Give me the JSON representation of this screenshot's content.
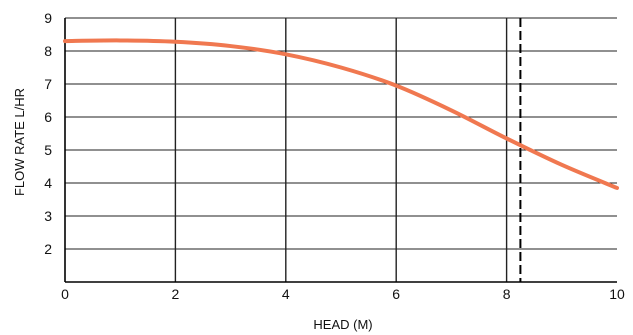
{
  "chart_data": {
    "type": "line",
    "title": "",
    "xlabel": "HEAD (M)",
    "ylabel": "FLOW RATE L/HR",
    "xlim": [
      0,
      10
    ],
    "ylim": [
      1,
      9
    ],
    "x_ticks": [
      "0",
      "2",
      "4",
      "6",
      "8",
      "10"
    ],
    "y_ticks": [
      "2",
      "3",
      "4",
      "5",
      "6",
      "7",
      "8",
      "9"
    ],
    "grid": true,
    "legend": "none",
    "series": [
      {
        "color": "#f07850",
        "points": [
          {
            "x": 0,
            "y": 8.3
          },
          {
            "x": 1,
            "y": 8.32
          },
          {
            "x": 2,
            "y": 8.28
          },
          {
            "x": 3,
            "y": 8.15
          },
          {
            "x": 4,
            "y": 7.9
          },
          {
            "x": 5,
            "y": 7.5
          },
          {
            "x": 6,
            "y": 6.95
          },
          {
            "x": 7,
            "y": 6.2
          },
          {
            "x": 8,
            "y": 5.35
          },
          {
            "x": 9,
            "y": 4.55
          },
          {
            "x": 10,
            "y": 3.85
          }
        ]
      }
    ],
    "reference_line": {
      "x": 8.25,
      "style": "dashed"
    }
  }
}
